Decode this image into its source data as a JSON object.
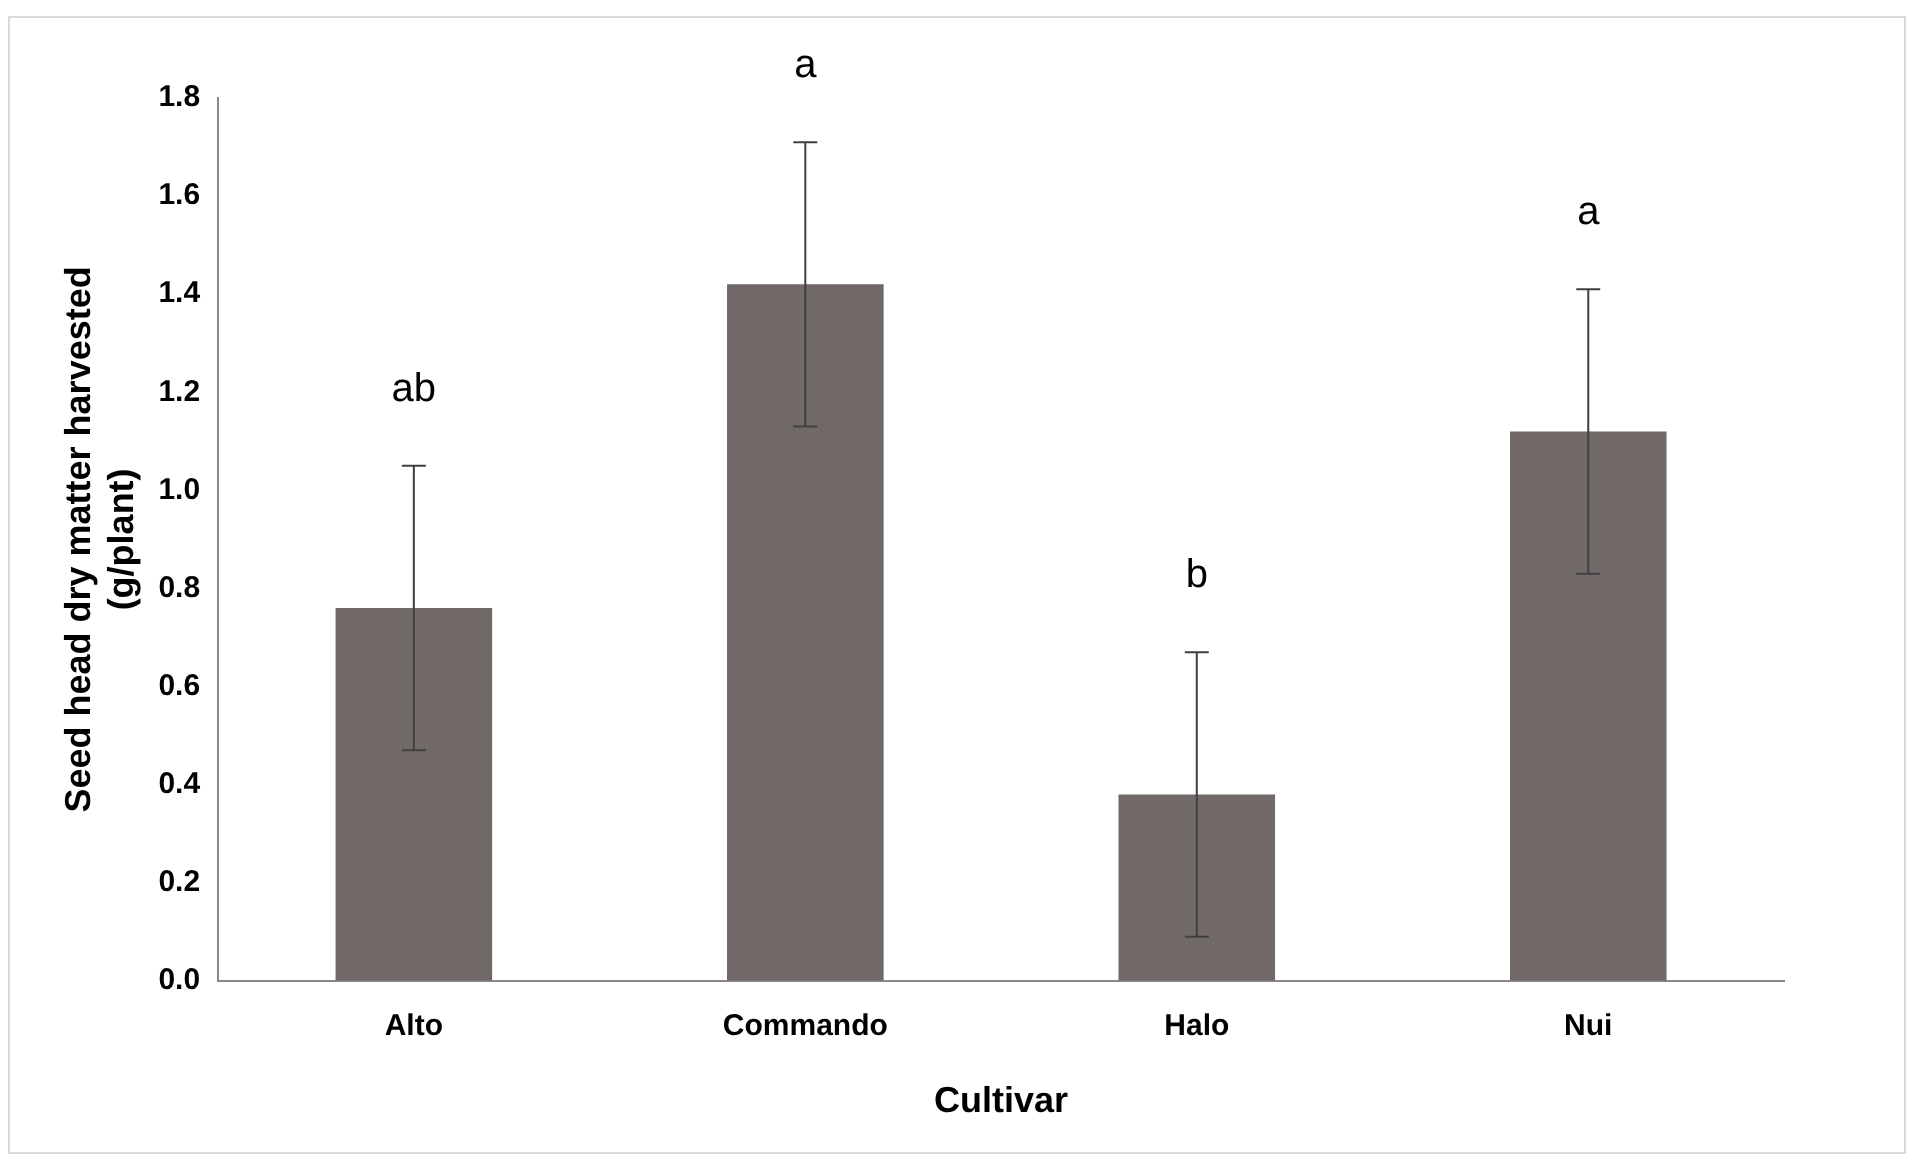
{
  "chart_data": {
    "type": "bar",
    "xlabel": "Cultivar",
    "ylabel": "Seed head dry matter harvested (g/plant)",
    "categories": [
      "Alto",
      "Commando",
      "Halo",
      "Nui"
    ],
    "values": [
      0.76,
      1.42,
      0.38,
      1.12
    ],
    "errors": [
      0.29,
      0.29,
      0.29,
      0.29
    ],
    "color": "#706968",
    "ylim": [
      0,
      1.8
    ],
    "yticks": [
      {
        "value": 0,
        "label": "0.0"
      },
      0.2,
      0.4,
      0.6,
      0.8,
      {
        "value": 1,
        "label": "1.0"
      },
      1.2,
      1.4,
      1.6,
      1.8
    ],
    "grid": false,
    "legend": false,
    "annotations": [
      "ab",
      "a",
      "b",
      "a"
    ]
  }
}
